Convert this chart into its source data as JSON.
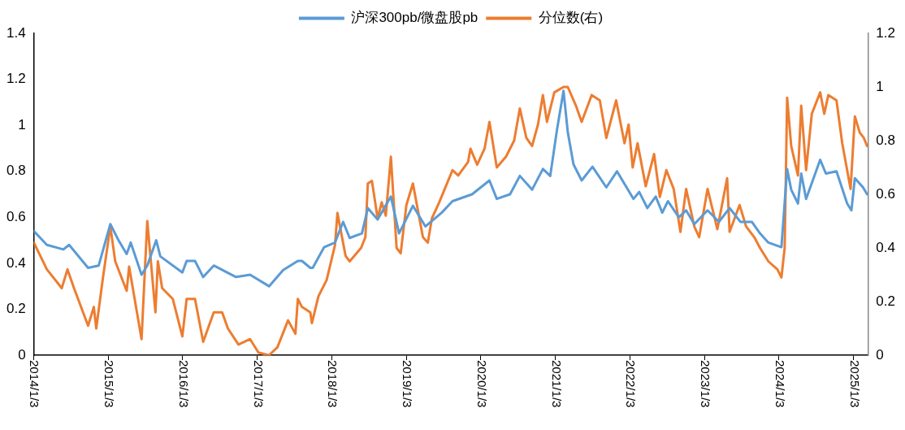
{
  "chart_data": {
    "type": "line",
    "legend": "top",
    "marker": "none",
    "xlim": [
      "2014-01-03",
      "2025-03-14"
    ],
    "xticks": [
      {
        "value": "2014-01-03",
        "label": "2014/1/3"
      },
      {
        "value": "2015-01-03",
        "label": "2015/1/3"
      },
      {
        "value": "2016-01-03",
        "label": "2016/1/3"
      },
      {
        "value": "2017-01-03",
        "label": "2017/1/3"
      },
      {
        "value": "2018-01-03",
        "label": "2018/1/3"
      },
      {
        "value": "2019-01-03",
        "label": "2019/1/3"
      },
      {
        "value": "2020-01-03",
        "label": "2020/1/3"
      },
      {
        "value": "2021-01-03",
        "label": "2021/1/3"
      },
      {
        "value": "2022-01-03",
        "label": "2022/1/3"
      },
      {
        "value": "2023-01-03",
        "label": "2023/1/3"
      },
      {
        "value": "2024-01-03",
        "label": "2024/1/3"
      },
      {
        "value": "2025-01-03",
        "label": "2025/1/3"
      }
    ],
    "ylim": [
      0,
      1.4
    ],
    "yticks": [
      0,
      0.2,
      0.4,
      0.6,
      0.8,
      1,
      1.2,
      1.4
    ],
    "y2lim": [
      0,
      1.2
    ],
    "y2ticks": [
      0,
      0.2,
      0.4,
      0.6,
      0.8,
      1,
      1.2
    ],
    "series": [
      {
        "name": "沪深300pb/微盘股pb",
        "color": "#5b9bd5",
        "x": [
          "2014-01-03",
          "2014-03-08",
          "2014-05-28",
          "2014-06-25",
          "2014-09-26",
          "2014-11-17",
          "2015-01-13",
          "2015-02-22",
          "2015-04-03",
          "2015-04-23",
          "2015-06-15",
          "2015-07-13",
          "2015-08-26",
          "2015-09-15",
          "2016-01-01",
          "2016-01-22",
          "2016-03-03",
          "2016-04-12",
          "2016-06-03",
          "2016-09-20",
          "2016-11-28",
          "2017-03-01",
          "2017-05-09",
          "2017-07-20",
          "2017-08-09",
          "2017-09-19",
          "2017-10-01",
          "2017-11-26",
          "2018-01-18",
          "2018-02-27",
          "2018-03-31",
          "2018-05-30",
          "2018-06-28",
          "2018-08-15",
          "2018-10-19",
          "2018-11-28",
          "2019-02-04",
          "2019-04-06",
          "2019-06-25",
          "2019-08-17",
          "2019-11-21",
          "2020-02-14",
          "2020-03-21",
          "2020-05-25",
          "2020-07-12",
          "2020-09-10",
          "2020-11-02",
          "2020-12-08",
          "2021-01-10",
          "2021-02-11",
          "2021-03-04",
          "2021-04-01",
          "2021-05-11",
          "2021-07-03",
          "2021-09-09",
          "2021-10-31",
          "2022-01-20",
          "2022-02-17",
          "2022-03-29",
          "2022-05-09",
          "2022-06-10",
          "2022-07-08",
          "2022-08-30",
          "2022-10-05",
          "2022-11-14",
          "2023-01-18",
          "2023-03-15",
          "2023-05-06",
          "2023-06-28",
          "2023-08-23",
          "2023-10-02",
          "2023-11-12",
          "2024-01-15",
          "2024-02-12",
          "2024-03-03",
          "2024-04-05",
          "2024-04-21",
          "2024-05-15",
          "2024-07-23",
          "2024-08-20",
          "2024-10-11",
          "2024-12-02",
          "2024-12-23",
          "2025-01-09",
          "2025-02-18",
          "2025-03-10"
        ],
        "values": [
          0.54,
          0.48,
          0.46,
          0.48,
          0.38,
          0.39,
          0.57,
          0.5,
          0.44,
          0.49,
          0.35,
          0.39,
          0.5,
          0.43,
          0.36,
          0.41,
          0.41,
          0.34,
          0.39,
          0.34,
          0.35,
          0.3,
          0.37,
          0.41,
          0.41,
          0.38,
          0.38,
          0.47,
          0.49,
          0.58,
          0.51,
          0.53,
          0.64,
          0.59,
          0.69,
          0.53,
          0.65,
          0.56,
          0.62,
          0.67,
          0.7,
          0.76,
          0.68,
          0.7,
          0.78,
          0.72,
          0.81,
          0.78,
          0.98,
          1.15,
          0.97,
          0.83,
          0.76,
          0.82,
          0.73,
          0.8,
          0.68,
          0.71,
          0.64,
          0.69,
          0.62,
          0.67,
          0.6,
          0.63,
          0.57,
          0.63,
          0.58,
          0.64,
          0.58,
          0.58,
          0.53,
          0.49,
          0.47,
          0.81,
          0.72,
          0.66,
          0.79,
          0.68,
          0.85,
          0.79,
          0.8,
          0.66,
          0.63,
          0.77,
          0.73,
          0.7
        ]
      },
      {
        "name": "分位数(右)",
        "color": "#ed7d31",
        "axis": "y2",
        "x": [
          "2014-01-03",
          "2014-03-08",
          "2014-05-20",
          "2014-06-17",
          "2014-07-19",
          "2014-09-26",
          "2014-10-24",
          "2014-11-05",
          "2014-12-08",
          "2015-01-13",
          "2015-02-06",
          "2015-04-03",
          "2015-04-15",
          "2015-06-15",
          "2015-07-13",
          "2015-08-22",
          "2015-09-03",
          "2015-09-24",
          "2015-11-15",
          "2016-01-01",
          "2016-01-22",
          "2016-03-03",
          "2016-04-12",
          "2016-06-03",
          "2016-07-14",
          "2016-08-11",
          "2016-10-02",
          "2016-11-28",
          "2017-01-08",
          "2017-03-01",
          "2017-04-11",
          "2017-06-02",
          "2017-07-08",
          "2017-07-20",
          "2017-08-09",
          "2017-09-19",
          "2017-09-27",
          "2017-10-29",
          "2017-12-08",
          "2018-01-18",
          "2018-01-30",
          "2018-03-11",
          "2018-03-31",
          "2018-05-26",
          "2018-06-16",
          "2018-06-28",
          "2018-07-18",
          "2018-08-15",
          "2018-09-04",
          "2018-09-24",
          "2018-10-19",
          "2018-11-16",
          "2018-12-06",
          "2019-01-03",
          "2019-02-04",
          "2019-03-25",
          "2019-04-18",
          "2019-05-08",
          "2019-06-13",
          "2019-08-17",
          "2019-09-14",
          "2019-11-01",
          "2019-11-13",
          "2019-12-16",
          "2020-01-21",
          "2020-02-14",
          "2020-03-21",
          "2020-05-05",
          "2020-06-14",
          "2020-07-12",
          "2020-08-13",
          "2020-09-10",
          "2020-10-09",
          "2020-11-02",
          "2020-11-22",
          "2020-12-28",
          "2021-02-11",
          "2021-03-04",
          "2021-04-13",
          "2021-05-11",
          "2021-06-29",
          "2021-08-08",
          "2021-09-09",
          "2021-10-27",
          "2021-12-07",
          "2021-12-27",
          "2022-01-16",
          "2022-02-09",
          "2022-03-21",
          "2022-05-01",
          "2022-05-29",
          "2022-06-30",
          "2022-08-05",
          "2022-09-07",
          "2022-10-05",
          "2022-11-14",
          "2022-12-08",
          "2023-01-18",
          "2023-03-07",
          "2023-04-24",
          "2023-05-06",
          "2023-06-24",
          "2023-07-26",
          "2023-09-04",
          "2023-10-02",
          "2023-11-12",
          "2023-12-26",
          "2024-01-15",
          "2024-01-31",
          "2024-02-12",
          "2024-03-03",
          "2024-04-05",
          "2024-04-21",
          "2024-05-15",
          "2024-06-12",
          "2024-07-23",
          "2024-08-12",
          "2024-09-01",
          "2024-10-11",
          "2024-11-08",
          "2024-12-19",
          "2025-01-09",
          "2025-02-02",
          "2025-02-22",
          "2025-03-10"
        ],
        "values": [
          0.42,
          0.32,
          0.25,
          0.32,
          0.25,
          0.11,
          0.18,
          0.1,
          0.29,
          0.48,
          0.35,
          0.24,
          0.33,
          0.06,
          0.5,
          0.16,
          0.35,
          0.25,
          0.21,
          0.07,
          0.21,
          0.21,
          0.05,
          0.16,
          0.16,
          0.1,
          0.04,
          0.06,
          0.01,
          0,
          0.03,
          0.13,
          0.08,
          0.21,
          0.18,
          0.16,
          0.12,
          0.22,
          0.28,
          0.41,
          0.53,
          0.37,
          0.35,
          0.4,
          0.44,
          0.64,
          0.65,
          0.51,
          0.57,
          0.52,
          0.74,
          0.4,
          0.38,
          0.56,
          0.64,
          0.44,
          0.42,
          0.51,
          0.57,
          0.69,
          0.67,
          0.72,
          0.77,
          0.71,
          0.77,
          0.87,
          0.7,
          0.74,
          0.8,
          0.92,
          0.81,
          0.78,
          0.86,
          0.97,
          0.87,
          0.98,
          1,
          1,
          0.93,
          0.87,
          0.97,
          0.95,
          0.81,
          0.95,
          0.79,
          0.86,
          0.7,
          0.79,
          0.63,
          0.75,
          0.59,
          0.69,
          0.62,
          0.46,
          0.62,
          0.48,
          0.44,
          0.62,
          0.47,
          0.66,
          0.46,
          0.56,
          0.48,
          0.44,
          0.4,
          0.35,
          0.32,
          0.29,
          0.4,
          0.96,
          0.78,
          0.67,
          0.93,
          0.69,
          0.9,
          0.98,
          0.9,
          0.97,
          0.95,
          0.79,
          0.62,
          0.89,
          0.83,
          0.81,
          0.78
        ]
      }
    ]
  }
}
